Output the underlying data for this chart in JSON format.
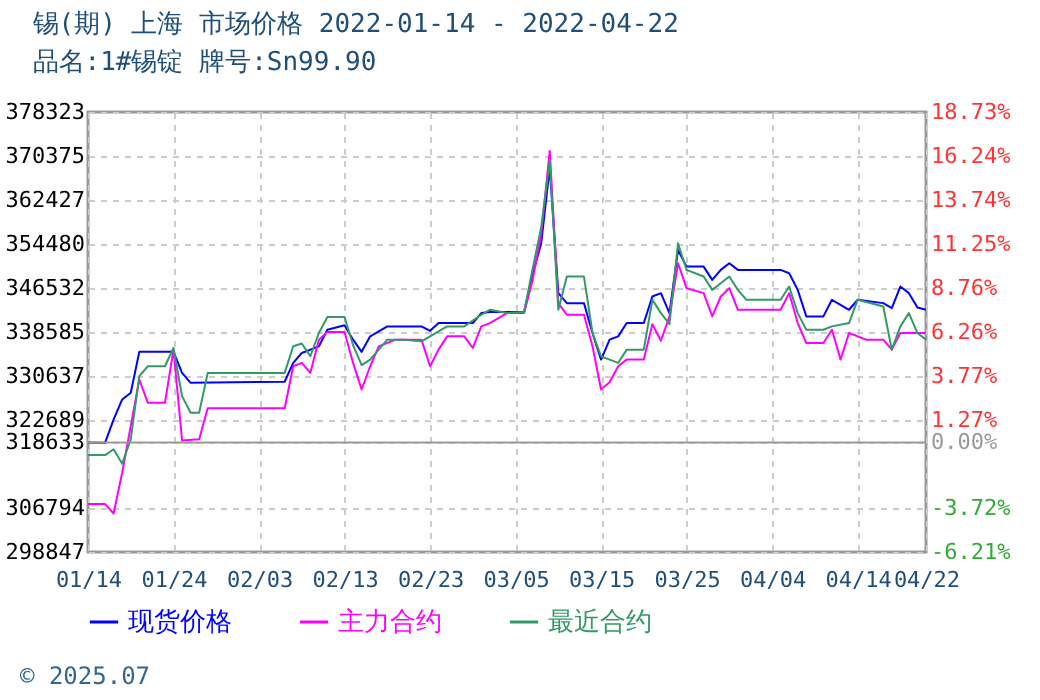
{
  "chart_data": {
    "type": "line",
    "title": "锡(期) 上海 市场价格 2022-01-14 - 2022-04-22",
    "subtitle": "品名:1#锡锭 牌号:Sn99.90",
    "xlim": [
      "2022-01-14",
      "2022-04-22"
    ],
    "xticks": [
      {
        "value": "2022-01-14",
        "label": "01/14"
      },
      {
        "value": "2022-01-24",
        "label": "01/24"
      },
      {
        "value": "2022-02-03",
        "label": "02/03"
      },
      {
        "value": "2022-02-13",
        "label": "02/13"
      },
      {
        "value": "2022-02-23",
        "label": "02/23"
      },
      {
        "value": "2022-03-05",
        "label": "03/05"
      },
      {
        "value": "2022-03-15",
        "label": "03/15"
      },
      {
        "value": "2022-03-25",
        "label": "03/25"
      },
      {
        "value": "2022-04-04",
        "label": "04/04"
      },
      {
        "value": "2022-04-14",
        "label": "04/14"
      },
      {
        "value": "2022-04-22",
        "label": "04/22"
      }
    ],
    "ylim": [
      298847,
      378323
    ],
    "yticks": [
      298847,
      306794,
      318633,
      322689,
      330637,
      338585,
      346532,
      354480,
      362427,
      370375,
      378323
    ],
    "y2lim": [
      -6.21,
      18.73
    ],
    "y2ticks": [
      {
        "value": -6.21,
        "label": "-6.21%"
      },
      {
        "value": -3.72,
        "label": "-3.72%"
      },
      {
        "value": 0,
        "label": "0.00%"
      },
      {
        "value": 1.27,
        "label": "1.27%"
      },
      {
        "value": 3.77,
        "label": "3.77%"
      },
      {
        "value": 6.26,
        "label": "6.26%"
      },
      {
        "value": 8.76,
        "label": "8.76%"
      },
      {
        "value": 11.25,
        "label": "11.25%"
      },
      {
        "value": 13.74,
        "label": "13.74%"
      },
      {
        "value": 16.24,
        "label": "16.24%"
      },
      {
        "value": 18.73,
        "label": "18.73%"
      }
    ],
    "ref_lines": [
      {
        "axis": "y2",
        "value": 0,
        "color": "#999999"
      }
    ],
    "grid": true,
    "legend": "bottom",
    "annotations": [
      "© 2025.07"
    ],
    "series": [
      {
        "name": "现货价格",
        "color": "#0000ff",
        "x": [
          "2022-01-14",
          "2022-01-16",
          "2022-01-17",
          "2022-01-18",
          "2022-01-19",
          "2022-01-20",
          "2022-01-24",
          "2022-01-25",
          "2022-01-26",
          "2022-02-06",
          "2022-02-07",
          "2022-02-08",
          "2022-02-10",
          "2022-02-11",
          "2022-02-13",
          "2022-02-14",
          "2022-02-15",
          "2022-02-16",
          "2022-02-18",
          "2022-02-22",
          "2022-02-23",
          "2022-02-24",
          "2022-02-28",
          "2022-03-01",
          "2022-03-02",
          "2022-03-06",
          "2022-03-07",
          "2022-03-08",
          "2022-03-09",
          "2022-03-10",
          "2022-03-11",
          "2022-03-13",
          "2022-03-14",
          "2022-03-15",
          "2022-03-16",
          "2022-03-17",
          "2022-03-18",
          "2022-03-20",
          "2022-03-21",
          "2022-03-22",
          "2022-03-23",
          "2022-03-24",
          "2022-03-25",
          "2022-03-27",
          "2022-03-28",
          "2022-03-29",
          "2022-03-30",
          "2022-03-31",
          "2022-04-05",
          "2022-04-06",
          "2022-04-07",
          "2022-04-08",
          "2022-04-10",
          "2022-04-11",
          "2022-04-13",
          "2022-04-14",
          "2022-04-17",
          "2022-04-18",
          "2022-04-19",
          "2022-04-20",
          "2022-04-21",
          "2022-04-22"
        ],
        "values": [
          318633,
          318600,
          322800,
          326400,
          327600,
          335000,
          335000,
          331200,
          329400,
          329600,
          333000,
          334800,
          336000,
          339000,
          339800,
          337200,
          335000,
          337800,
          339600,
          339600,
          338800,
          340200,
          340200,
          342000,
          342200,
          342200,
          349000,
          354600,
          368300,
          345600,
          343800,
          343800,
          338400,
          333600,
          337200,
          337800,
          340200,
          340200,
          345000,
          345600,
          342000,
          353400,
          350400,
          350400,
          348000,
          349800,
          351000,
          349800,
          349800,
          349200,
          346200,
          341400,
          341400,
          344400,
          342600,
          344400,
          343800,
          342900,
          346800,
          345600,
          343000,
          342600
        ]
      },
      {
        "name": "主力合约",
        "color": "#ff00ff",
        "x": [
          "2022-01-14",
          "2022-01-16",
          "2022-01-17",
          "2022-01-18",
          "2022-01-19",
          "2022-01-20",
          "2022-01-21",
          "2022-01-23",
          "2022-01-24",
          "2022-01-25",
          "2022-01-27",
          "2022-01-28",
          "2022-02-06",
          "2022-02-07",
          "2022-02-08",
          "2022-02-09",
          "2022-02-10",
          "2022-02-11",
          "2022-02-13",
          "2022-02-14",
          "2022-02-15",
          "2022-02-16",
          "2022-02-17",
          "2022-02-19",
          "2022-02-22",
          "2022-02-23",
          "2022-02-24",
          "2022-02-25",
          "2022-02-27",
          "2022-02-28",
          "2022-03-01",
          "2022-03-02",
          "2022-03-04",
          "2022-03-06",
          "2022-03-07",
          "2022-03-08",
          "2022-03-09",
          "2022-03-10",
          "2022-03-11",
          "2022-03-13",
          "2022-03-14",
          "2022-03-15",
          "2022-03-16",
          "2022-03-17",
          "2022-03-18",
          "2022-03-20",
          "2022-03-21",
          "2022-03-22",
          "2022-03-23",
          "2022-03-24",
          "2022-03-25",
          "2022-03-27",
          "2022-03-28",
          "2022-03-29",
          "2022-03-30",
          "2022-03-31",
          "2022-04-05",
          "2022-04-06",
          "2022-04-07",
          "2022-04-08",
          "2022-04-10",
          "2022-04-11",
          "2022-04-12",
          "2022-04-13",
          "2022-04-15",
          "2022-04-17",
          "2022-04-18",
          "2022-04-19",
          "2022-04-22"
        ],
        "values": [
          307500,
          307500,
          305800,
          313200,
          321600,
          330000,
          325800,
          325800,
          335400,
          319000,
          319200,
          324800,
          324800,
          332400,
          333000,
          331200,
          337200,
          338600,
          338600,
          333000,
          328200,
          332400,
          336000,
          337200,
          337200,
          332400,
          335400,
          337800,
          337800,
          335700,
          339600,
          340200,
          342000,
          342000,
          348000,
          356300,
          371300,
          343800,
          341700,
          341700,
          336000,
          328200,
          329500,
          332400,
          333600,
          333600,
          340000,
          337000,
          341400,
          351000,
          346500,
          345600,
          341400,
          345000,
          346500,
          342600,
          342600,
          345600,
          340200,
          336600,
          336600,
          339000,
          333600,
          338400,
          337200,
          337200,
          335400,
          338400,
          338400
        ]
      },
      {
        "name": "最近合约",
        "color": "#339966",
        "x": [
          "2022-01-14",
          "2022-01-16",
          "2022-01-17",
          "2022-01-18",
          "2022-01-19",
          "2022-01-20",
          "2022-01-21",
          "2022-01-23",
          "2022-01-24",
          "2022-01-25",
          "2022-01-26",
          "2022-01-27",
          "2022-01-28",
          "2022-02-06",
          "2022-02-07",
          "2022-02-08",
          "2022-02-09",
          "2022-02-10",
          "2022-02-11",
          "2022-02-13",
          "2022-02-14",
          "2022-02-15",
          "2022-02-16",
          "2022-02-18",
          "2022-02-20",
          "2022-02-22",
          "2022-02-25",
          "2022-02-27",
          "2022-03-01",
          "2022-03-02",
          "2022-03-04",
          "2022-03-06",
          "2022-03-07",
          "2022-03-08",
          "2022-03-09",
          "2022-03-10",
          "2022-03-11",
          "2022-03-13",
          "2022-03-14",
          "2022-03-15",
          "2022-03-16",
          "2022-03-17",
          "2022-03-18",
          "2022-03-20",
          "2022-03-21",
          "2022-03-22",
          "2022-03-23",
          "2022-03-24",
          "2022-03-25",
          "2022-03-27",
          "2022-03-28",
          "2022-03-29",
          "2022-03-30",
          "2022-03-31",
          "2022-04-01",
          "2022-04-05",
          "2022-04-06",
          "2022-04-07",
          "2022-04-08",
          "2022-04-10",
          "2022-04-11",
          "2022-04-13",
          "2022-04-14",
          "2022-04-17",
          "2022-04-18",
          "2022-04-19",
          "2022-04-20",
          "2022-04-21",
          "2022-04-22"
        ],
        "values": [
          316350,
          316350,
          317400,
          314800,
          319200,
          330600,
          332400,
          332400,
          335700,
          327000,
          324000,
          324000,
          331200,
          331200,
          336000,
          336500,
          334200,
          338400,
          341300,
          341300,
          336200,
          332600,
          333600,
          337200,
          337200,
          336900,
          339600,
          339600,
          341700,
          342600,
          342000,
          342200,
          350000,
          357500,
          369500,
          342600,
          348600,
          348600,
          338400,
          334200,
          333600,
          333000,
          335400,
          335400,
          344400,
          342000,
          340000,
          354600,
          349800,
          348600,
          346200,
          347400,
          348600,
          346200,
          344400,
          344400,
          346800,
          342000,
          339000,
          339000,
          339600,
          340200,
          344400,
          343200,
          335400,
          339600,
          342000,
          338400,
          337200
        ]
      }
    ]
  }
}
